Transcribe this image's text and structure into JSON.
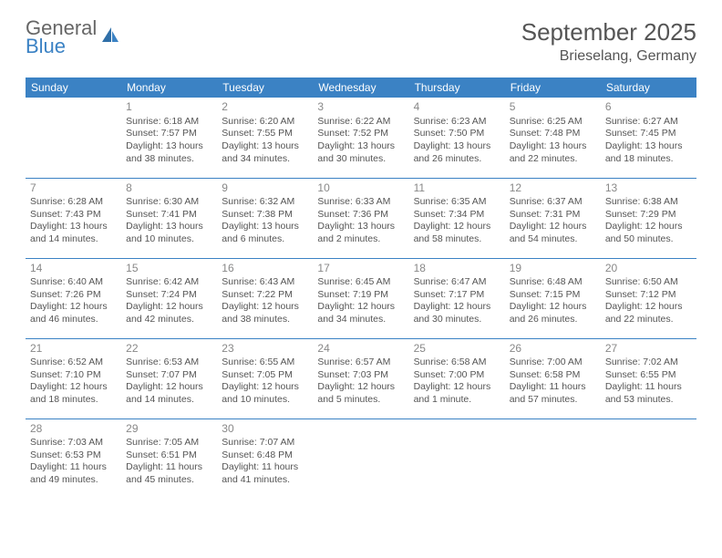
{
  "brand": {
    "line1": "General",
    "line2": "Blue"
  },
  "title": "September 2025",
  "location": "Brieselang, Germany",
  "theme": {
    "header_bg": "#3b82c4",
    "header_fg": "#ffffff",
    "border_color": "#3b82c4",
    "text_color": "#555555",
    "daynum_color": "#888888",
    "page_bg": "#ffffff"
  },
  "typography": {
    "month_title_pt": 26,
    "location_pt": 16,
    "dayheader_pt": 12,
    "daynum_pt": 12,
    "body_pt": 10.5
  },
  "dayHeaders": [
    "Sunday",
    "Monday",
    "Tuesday",
    "Wednesday",
    "Thursday",
    "Friday",
    "Saturday"
  ],
  "weeks": [
    [
      null,
      {
        "n": "1",
        "sunrise": "6:18 AM",
        "sunset": "7:57 PM",
        "daylight": "13 hours and 38 minutes."
      },
      {
        "n": "2",
        "sunrise": "6:20 AM",
        "sunset": "7:55 PM",
        "daylight": "13 hours and 34 minutes."
      },
      {
        "n": "3",
        "sunrise": "6:22 AM",
        "sunset": "7:52 PM",
        "daylight": "13 hours and 30 minutes."
      },
      {
        "n": "4",
        "sunrise": "6:23 AM",
        "sunset": "7:50 PM",
        "daylight": "13 hours and 26 minutes."
      },
      {
        "n": "5",
        "sunrise": "6:25 AM",
        "sunset": "7:48 PM",
        "daylight": "13 hours and 22 minutes."
      },
      {
        "n": "6",
        "sunrise": "6:27 AM",
        "sunset": "7:45 PM",
        "daylight": "13 hours and 18 minutes."
      }
    ],
    [
      {
        "n": "7",
        "sunrise": "6:28 AM",
        "sunset": "7:43 PM",
        "daylight": "13 hours and 14 minutes."
      },
      {
        "n": "8",
        "sunrise": "6:30 AM",
        "sunset": "7:41 PM",
        "daylight": "13 hours and 10 minutes."
      },
      {
        "n": "9",
        "sunrise": "6:32 AM",
        "sunset": "7:38 PM",
        "daylight": "13 hours and 6 minutes."
      },
      {
        "n": "10",
        "sunrise": "6:33 AM",
        "sunset": "7:36 PM",
        "daylight": "13 hours and 2 minutes."
      },
      {
        "n": "11",
        "sunrise": "6:35 AM",
        "sunset": "7:34 PM",
        "daylight": "12 hours and 58 minutes."
      },
      {
        "n": "12",
        "sunrise": "6:37 AM",
        "sunset": "7:31 PM",
        "daylight": "12 hours and 54 minutes."
      },
      {
        "n": "13",
        "sunrise": "6:38 AM",
        "sunset": "7:29 PM",
        "daylight": "12 hours and 50 minutes."
      }
    ],
    [
      {
        "n": "14",
        "sunrise": "6:40 AM",
        "sunset": "7:26 PM",
        "daylight": "12 hours and 46 minutes."
      },
      {
        "n": "15",
        "sunrise": "6:42 AM",
        "sunset": "7:24 PM",
        "daylight": "12 hours and 42 minutes."
      },
      {
        "n": "16",
        "sunrise": "6:43 AM",
        "sunset": "7:22 PM",
        "daylight": "12 hours and 38 minutes."
      },
      {
        "n": "17",
        "sunrise": "6:45 AM",
        "sunset": "7:19 PM",
        "daylight": "12 hours and 34 minutes."
      },
      {
        "n": "18",
        "sunrise": "6:47 AM",
        "sunset": "7:17 PM",
        "daylight": "12 hours and 30 minutes."
      },
      {
        "n": "19",
        "sunrise": "6:48 AM",
        "sunset": "7:15 PM",
        "daylight": "12 hours and 26 minutes."
      },
      {
        "n": "20",
        "sunrise": "6:50 AM",
        "sunset": "7:12 PM",
        "daylight": "12 hours and 22 minutes."
      }
    ],
    [
      {
        "n": "21",
        "sunrise": "6:52 AM",
        "sunset": "7:10 PM",
        "daylight": "12 hours and 18 minutes."
      },
      {
        "n": "22",
        "sunrise": "6:53 AM",
        "sunset": "7:07 PM",
        "daylight": "12 hours and 14 minutes."
      },
      {
        "n": "23",
        "sunrise": "6:55 AM",
        "sunset": "7:05 PM",
        "daylight": "12 hours and 10 minutes."
      },
      {
        "n": "24",
        "sunrise": "6:57 AM",
        "sunset": "7:03 PM",
        "daylight": "12 hours and 5 minutes."
      },
      {
        "n": "25",
        "sunrise": "6:58 AM",
        "sunset": "7:00 PM",
        "daylight": "12 hours and 1 minute."
      },
      {
        "n": "26",
        "sunrise": "7:00 AM",
        "sunset": "6:58 PM",
        "daylight": "11 hours and 57 minutes."
      },
      {
        "n": "27",
        "sunrise": "7:02 AM",
        "sunset": "6:55 PM",
        "daylight": "11 hours and 53 minutes."
      }
    ],
    [
      {
        "n": "28",
        "sunrise": "7:03 AM",
        "sunset": "6:53 PM",
        "daylight": "11 hours and 49 minutes."
      },
      {
        "n": "29",
        "sunrise": "7:05 AM",
        "sunset": "6:51 PM",
        "daylight": "11 hours and 45 minutes."
      },
      {
        "n": "30",
        "sunrise": "7:07 AM",
        "sunset": "6:48 PM",
        "daylight": "11 hours and 41 minutes."
      },
      null,
      null,
      null,
      null
    ]
  ],
  "labels": {
    "sunrise_prefix": "Sunrise: ",
    "sunset_prefix": "Sunset: ",
    "daylight_prefix": "Daylight: "
  }
}
